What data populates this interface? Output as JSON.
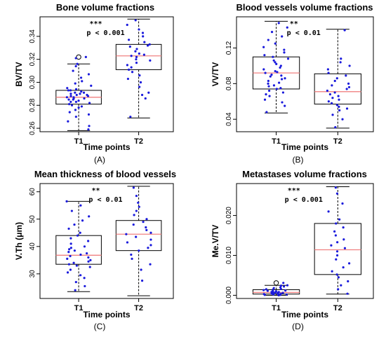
{
  "chart_data": [
    {
      "type": "box",
      "panel_label": "(A)",
      "title": "Bone volume fractions",
      "xlabel": "Time points",
      "ylabel": "BV/TV",
      "categories": [
        "T1",
        "T2"
      ],
      "ylim": [
        0.257,
        0.357
      ],
      "yticks": [
        0.26,
        0.28,
        0.3,
        0.32,
        0.34
      ],
      "ytick_labels": [
        "0.26",
        "0.28",
        "0.30",
        "0.32",
        "0.34"
      ],
      "annotation": {
        "stars": "***",
        "text": "p < 0.001"
      },
      "colors": {
        "median": "#f08080",
        "points": "#1a1adc",
        "box": "#000000"
      },
      "boxes": [
        {
          "category": "T1",
          "whisker_low": 0.258,
          "q1": 0.281,
          "median": 0.287,
          "q3": 0.293,
          "whisker_high": 0.316,
          "outliers": [
            0.322
          ],
          "points": [
            0.259,
            0.262,
            0.266,
            0.27,
            0.272,
            0.274,
            0.276,
            0.278,
            0.279,
            0.28,
            0.281,
            0.282,
            0.283,
            0.283,
            0.284,
            0.285,
            0.285,
            0.286,
            0.286,
            0.287,
            0.287,
            0.288,
            0.288,
            0.289,
            0.289,
            0.29,
            0.29,
            0.291,
            0.291,
            0.292,
            0.293,
            0.293,
            0.294,
            0.295,
            0.297,
            0.299,
            0.301,
            0.304,
            0.307,
            0.31,
            0.314,
            0.316,
            0.321,
            0.322
          ]
        },
        {
          "category": "T2",
          "whisker_low": 0.269,
          "q1": 0.311,
          "median": 0.323,
          "q3": 0.333,
          "whisker_high": 0.355,
          "outliers": [],
          "points": [
            0.27,
            0.286,
            0.289,
            0.291,
            0.296,
            0.3,
            0.303,
            0.306,
            0.309,
            0.311,
            0.313,
            0.315,
            0.317,
            0.319,
            0.32,
            0.322,
            0.323,
            0.324,
            0.325,
            0.327,
            0.329,
            0.331,
            0.332,
            0.333,
            0.335,
            0.337,
            0.34,
            0.343,
            0.346,
            0.35,
            0.354
          ]
        }
      ]
    },
    {
      "type": "box",
      "panel_label": "(B)",
      "title": "Blood vessels volume fractions",
      "xlabel": "Time points",
      "ylabel": "VV/TV",
      "categories": [
        "T1",
        "T2"
      ],
      "ylim": [
        0.026,
        0.155
      ],
      "yticks": [
        0.04,
        0.08,
        0.12
      ],
      "ytick_labels": [
        "0.04",
        "0.08",
        "0.12"
      ],
      "annotation": {
        "stars": "**",
        "text": "p < 0.01"
      },
      "colors": {
        "median": "#f08080",
        "points": "#1a1adc",
        "box": "#000000"
      },
      "boxes": [
        {
          "category": "T1",
          "whisker_low": 0.047,
          "q1": 0.074,
          "median": 0.092,
          "q3": 0.11,
          "whisker_high": 0.15,
          "outliers": [],
          "points": [
            0.048,
            0.055,
            0.059,
            0.062,
            0.066,
            0.068,
            0.07,
            0.072,
            0.074,
            0.075,
            0.077,
            0.078,
            0.08,
            0.081,
            0.083,
            0.085,
            0.086,
            0.088,
            0.089,
            0.09,
            0.092,
            0.093,
            0.094,
            0.096,
            0.098,
            0.1,
            0.102,
            0.104,
            0.106,
            0.108,
            0.11,
            0.112,
            0.115,
            0.118,
            0.121,
            0.125,
            0.129,
            0.133,
            0.138,
            0.143,
            0.148
          ]
        },
        {
          "category": "T2",
          "whisker_low": 0.03,
          "q1": 0.057,
          "median": 0.071,
          "q3": 0.091,
          "whisker_high": 0.141,
          "outliers": [],
          "points": [
            0.031,
            0.04,
            0.045,
            0.05,
            0.052,
            0.054,
            0.056,
            0.058,
            0.06,
            0.062,
            0.064,
            0.066,
            0.068,
            0.07,
            0.072,
            0.074,
            0.076,
            0.078,
            0.08,
            0.083,
            0.086,
            0.089,
            0.092,
            0.096,
            0.1,
            0.104,
            0.108,
            0.14
          ]
        }
      ]
    },
    {
      "type": "box",
      "panel_label": "(C)",
      "title": "Mean thickness of blood vessels",
      "xlabel": "Time points",
      "ylabel": "V.Th (μm)",
      "categories": [
        "T1",
        "T2"
      ],
      "ylim": [
        21,
        63
      ],
      "yticks": [
        30,
        40,
        50,
        60
      ],
      "ytick_labels": [
        "30",
        "40",
        "50",
        "60"
      ],
      "annotation": {
        "stars": "**",
        "text": "p < 0.01"
      },
      "colors": {
        "median": "#f08080",
        "points": "#1a1adc",
        "box": "#000000"
      },
      "boxes": [
        {
          "category": "T1",
          "whisker_low": 23.5,
          "q1": 33.5,
          "median": 36.8,
          "q3": 44.0,
          "whisker_high": 56.5,
          "outliers": [],
          "points": [
            24.0,
            25.5,
            27.0,
            28.5,
            29.5,
            30.5,
            31.5,
            32.5,
            33.0,
            33.5,
            34.0,
            34.5,
            35.0,
            35.5,
            36.0,
            36.5,
            37.0,
            37.5,
            38.0,
            38.5,
            39.0,
            39.5,
            40.0,
            41.0,
            42.0,
            43.0,
            44.0,
            45.0,
            46.5,
            48.0,
            49.5,
            51.0,
            53.0,
            55.0,
            56.5
          ]
        },
        {
          "category": "T2",
          "whisker_low": 22.0,
          "q1": 38.5,
          "median": 44.5,
          "q3": 49.5,
          "whisker_high": 62.0,
          "outliers": [],
          "points": [
            27.5,
            31.5,
            33.5,
            35.5,
            37.0,
            38.5,
            39.5,
            40.5,
            41.5,
            42.5,
            43.5,
            44.5,
            45.0,
            46.0,
            47.0,
            48.0,
            49.0,
            50.0,
            51.5,
            53.0,
            54.5,
            56.0,
            58.5,
            61.5
          ]
        }
      ]
    },
    {
      "type": "box",
      "panel_label": "(D)",
      "title": "Metastases volume fractions",
      "xlabel": "Time points",
      "ylabel": "Me.V/TV",
      "categories": [
        "T1",
        "T2"
      ],
      "ylim": [
        -0.0008,
        0.028
      ],
      "yticks": [
        0.0,
        0.01,
        0.02
      ],
      "ytick_labels": [
        "0.000",
        "0.010",
        "0.020"
      ],
      "annotation": {
        "stars": "***",
        "text": "p < 0.001"
      },
      "colors": {
        "median": "#f08080",
        "points": "#1a1adc",
        "box": "#000000"
      },
      "boxes": [
        {
          "category": "T1",
          "whisker_low": 0.0,
          "q1": 0.0003,
          "median": 0.0007,
          "q3": 0.0014,
          "whisker_high": 0.0025,
          "outliers": [
            0.0031
          ],
          "points": [
            0.0,
            0.0001,
            0.0001,
            0.0002,
            0.0002,
            0.0003,
            0.0003,
            0.0004,
            0.0004,
            0.0005,
            0.0005,
            0.0006,
            0.0006,
            0.0007,
            0.0007,
            0.0008,
            0.0008,
            0.0009,
            0.001,
            0.001,
            0.0011,
            0.0012,
            0.0013,
            0.0014,
            0.0015,
            0.0016,
            0.0018,
            0.002,
            0.0022,
            0.0024,
            0.0025,
            0.0031
          ]
        },
        {
          "category": "T2",
          "whisker_low": 0.0003,
          "q1": 0.0052,
          "median": 0.0114,
          "q3": 0.018,
          "whisker_high": 0.0272,
          "outliers": [],
          "points": [
            0.0004,
            0.0015,
            0.0025,
            0.0035,
            0.0045,
            0.0052,
            0.006,
            0.007,
            0.008,
            0.009,
            0.01,
            0.011,
            0.0118,
            0.0125,
            0.0133,
            0.014,
            0.015,
            0.016,
            0.017,
            0.018,
            0.019,
            0.021,
            0.023,
            0.0255,
            0.027
          ]
        }
      ]
    }
  ]
}
